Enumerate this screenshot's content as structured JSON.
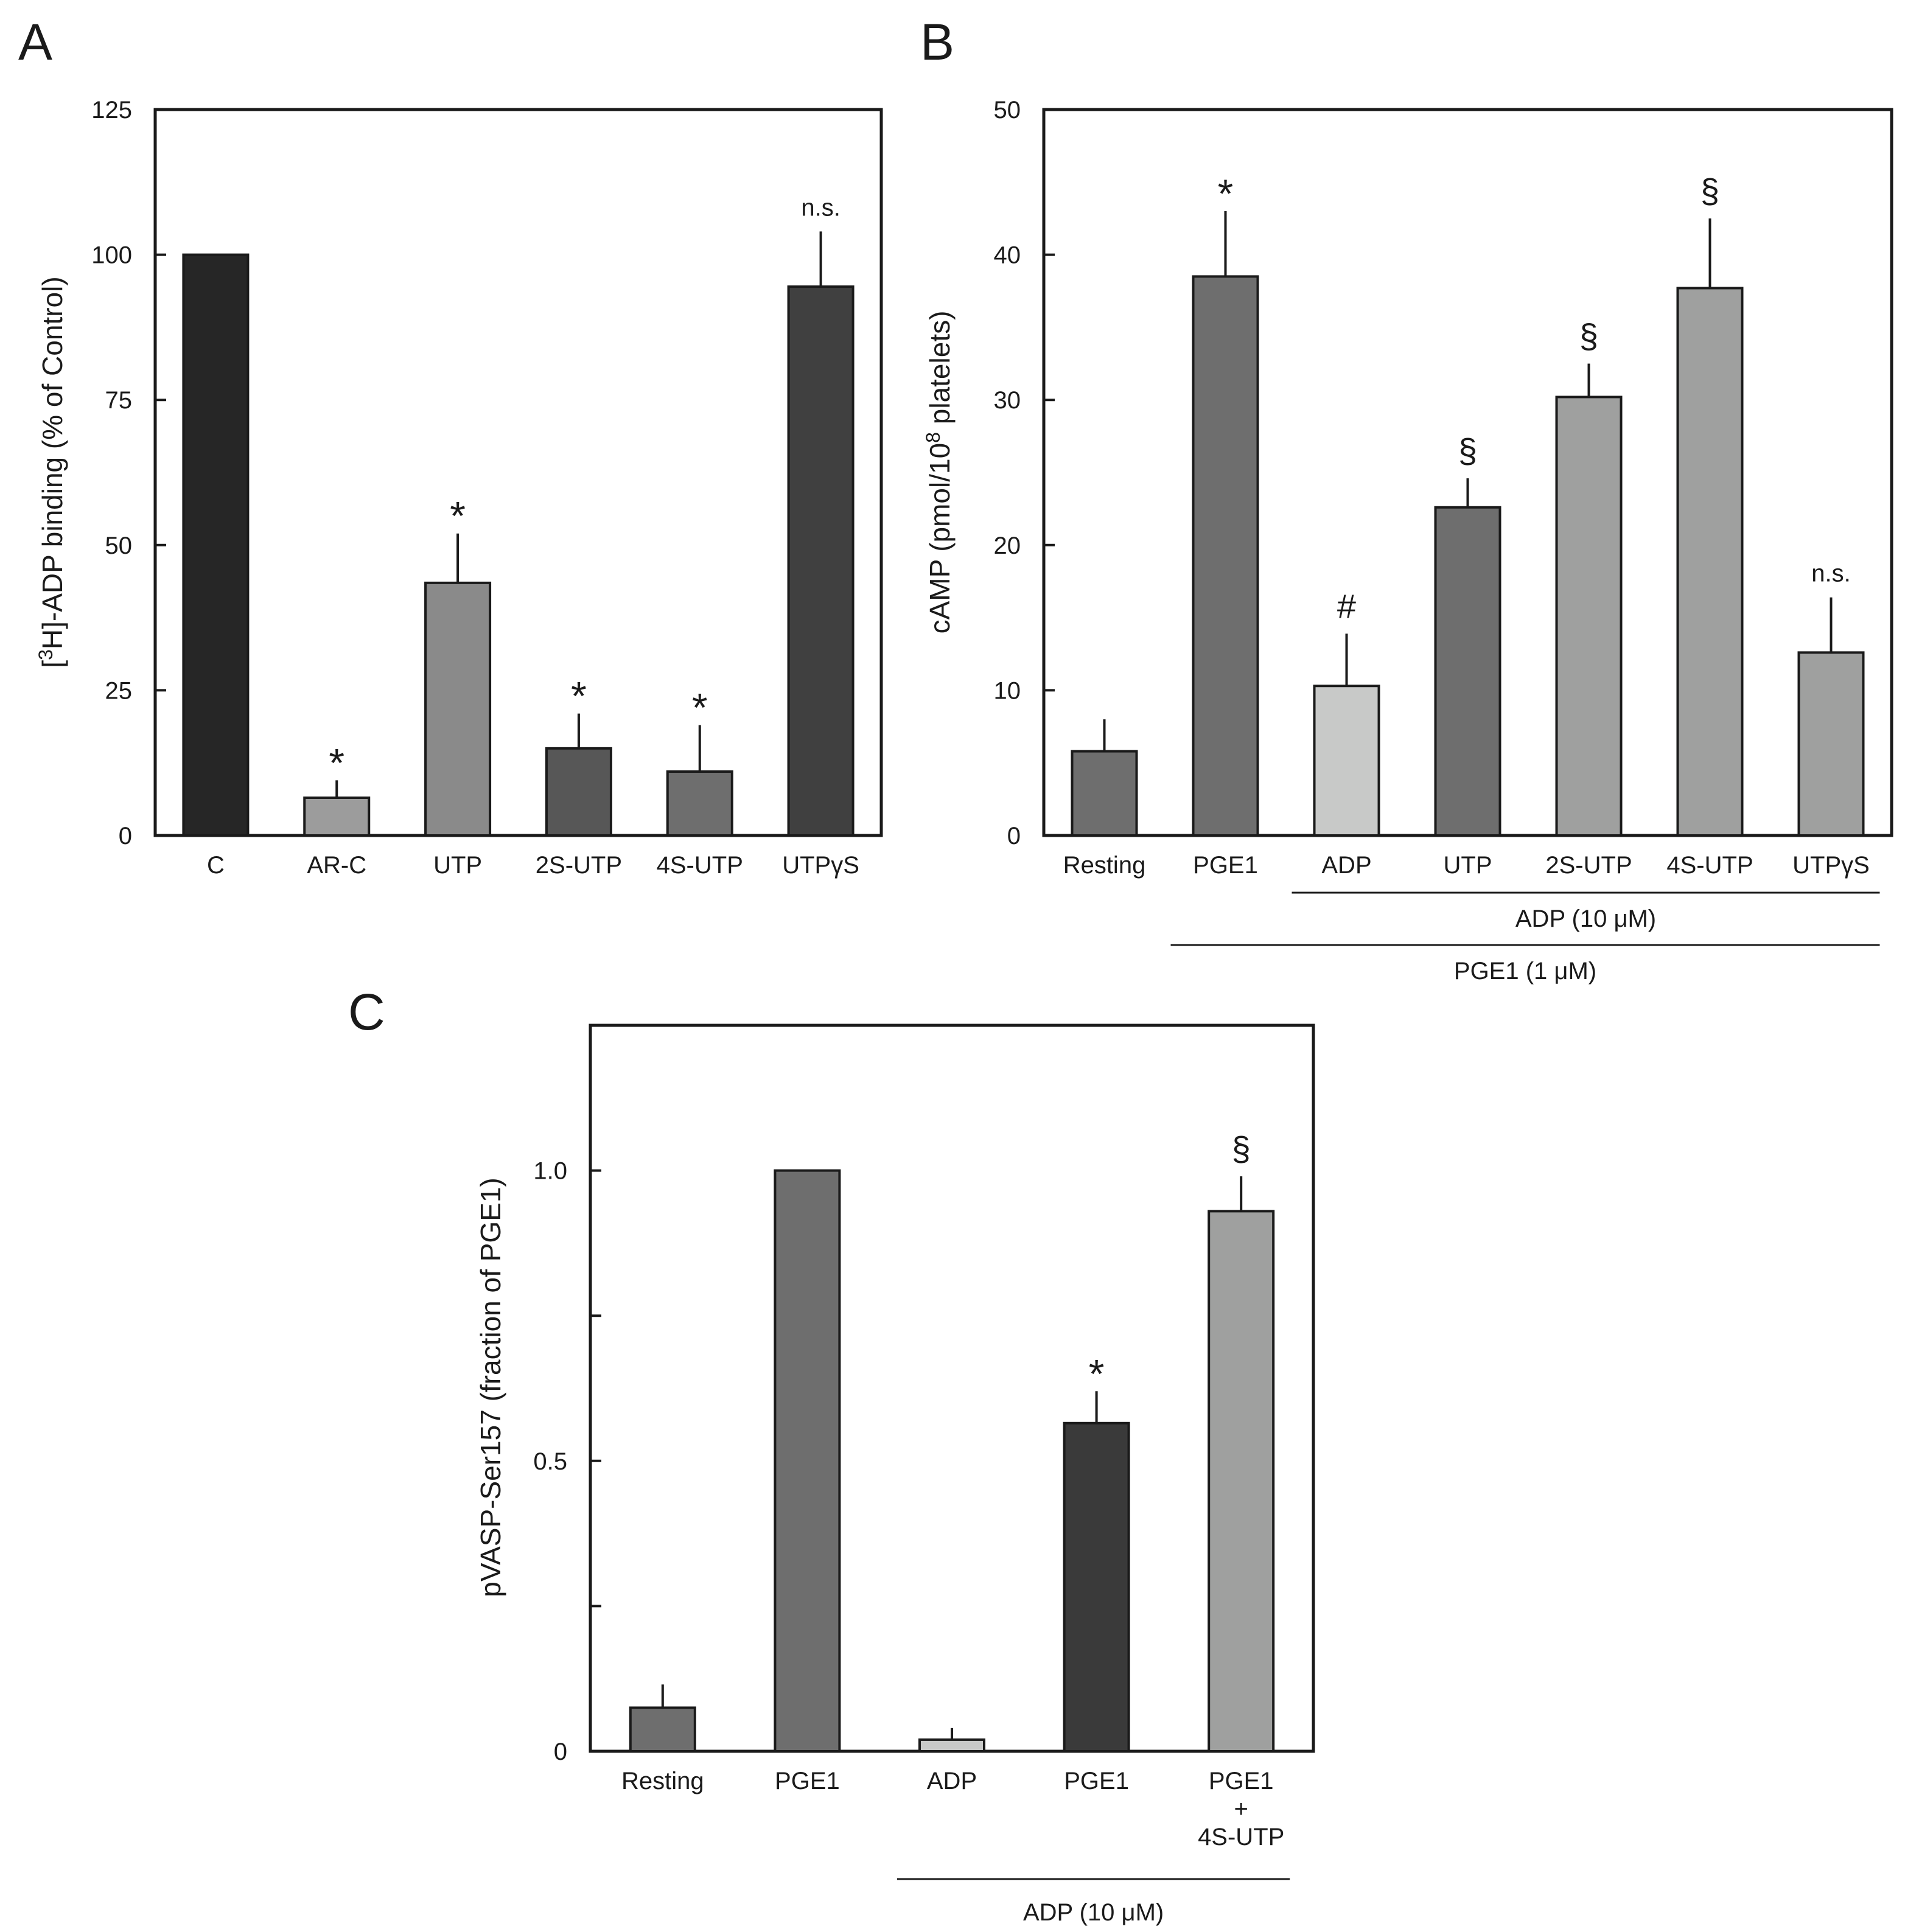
{
  "chart_data": [
    {
      "panel": "A",
      "type": "bar",
      "ylabel_parts": [
        "[",
        "3",
        "H]-ADP binding (% of Control)"
      ],
      "ylim": [
        0,
        125
      ],
      "yticks": [
        0,
        25,
        50,
        75,
        100,
        125
      ],
      "categories": [
        "C",
        "AR-C",
        "UTP",
        "2S-UTP",
        "4S-UTP",
        "UTPγS"
      ],
      "values": [
        100,
        6.5,
        43.5,
        15,
        11,
        94.5
      ],
      "errors": [
        0,
        3,
        8.5,
        6,
        8,
        9.5
      ],
      "colors": [
        "#262626",
        "#9c9c9c",
        "#8a8a8a",
        "#575757",
        "#6e6e6e",
        "#404040"
      ],
      "annotations": [
        "",
        "*",
        "*",
        "*",
        "*",
        "n.s."
      ]
    },
    {
      "panel": "B",
      "type": "bar",
      "ylabel_parts": [
        "cAMP (pmol/10",
        "8",
        " platelets)"
      ],
      "ylim": [
        0,
        50
      ],
      "yticks": [
        0,
        10,
        20,
        30,
        40,
        50
      ],
      "categories": [
        "Resting",
        "PGE1",
        "ADP",
        "UTP",
        "2S-UTP",
        "4S-UTP",
        "UTPγS"
      ],
      "values": [
        5.8,
        38.5,
        10.3,
        22.6,
        30.2,
        37.7,
        12.6
      ],
      "errors": [
        2.2,
        4.5,
        3.6,
        2.0,
        2.3,
        4.8,
        3.8
      ],
      "colors": [
        "#6e6e6e",
        "#6e6e6e",
        "#c8c9c8",
        "#6e6e6e",
        "#9fa09f",
        "#9fa09f",
        "#9fa09f"
      ],
      "annotations": [
        "",
        "*",
        "#",
        "§",
        "§",
        "§",
        "n.s."
      ],
      "groups": [
        {
          "label": "ADP (10 μM)",
          "from": 2,
          "to": 6
        },
        {
          "label": "PGE1 (1 μM)",
          "from": 1,
          "to": 6
        }
      ]
    },
    {
      "panel": "C",
      "type": "bar",
      "ylabel_parts": [
        "pVASP-Ser157 (fraction of PGE1)"
      ],
      "ylim": [
        0,
        1.25
      ],
      "yticks": [
        0,
        0.25,
        0.5,
        0.75,
        1.0,
        1.25
      ],
      "ytick_labels": [
        "0",
        "",
        "0.5",
        "",
        "1.0",
        ""
      ],
      "categories": [
        [
          "Resting"
        ],
        [
          "PGE1"
        ],
        [
          "ADP"
        ],
        [
          "PGE1"
        ],
        [
          "PGE1",
          "+",
          "4S-UTP"
        ]
      ],
      "values": [
        0.075,
        1.0,
        0.02,
        0.565,
        0.93
      ],
      "errors": [
        0.04,
        0,
        0.02,
        0.055,
        0.06
      ],
      "colors": [
        "#6e6e6e",
        "#6e6e6e",
        "#c8c9c8",
        "#3a3a3a",
        "#9fa09f"
      ],
      "annotations": [
        "",
        "",
        "",
        "*",
        "§"
      ],
      "groups": [
        {
          "label": "ADP (10 μM)",
          "from": 2,
          "to": 4
        }
      ]
    }
  ]
}
